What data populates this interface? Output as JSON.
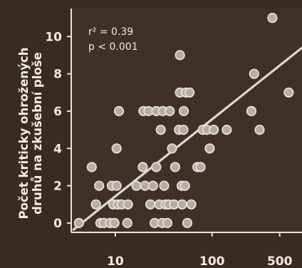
{
  "chart_data": {
    "type": "scatter",
    "title": "",
    "xlabel": "",
    "ylabel_lines": [
      "Počet kriticky ohrožených",
      "druhů na zkušební ploše"
    ],
    "x_scale": "log",
    "xlim": [
      3.5,
      850
    ],
    "ylim": [
      -0.5,
      11.5
    ],
    "x_ticks": [
      10,
      100,
      500
    ],
    "x_tick_labels": [
      "10",
      "100",
      "500"
    ],
    "y_ticks": [
      0,
      2,
      4,
      6,
      8,
      10
    ],
    "y_tick_labels": [
      "0",
      "2",
      "4",
      "6",
      "8",
      "10"
    ],
    "annotations": [
      "r² = 0.39",
      "p < 0.001"
    ],
    "grid": false,
    "legend": "none",
    "colors": {
      "background": "#3a2b22",
      "plot_area": "#3f3128",
      "axes": "#e8e2dc",
      "point_fill": "#b5aca6",
      "point_edge": "#e6e0da",
      "trend_line": "#ddd8d2",
      "text": "#f0ebe6"
    },
    "trend_line": {
      "x": [
        3.7,
        850
      ],
      "y": [
        -0.35,
        9.4
      ]
    },
    "points": [
      {
        "x": 4.2,
        "y": 0
      },
      {
        "x": 5.7,
        "y": 3
      },
      {
        "x": 6.3,
        "y": 1
      },
      {
        "x": 6.8,
        "y": 2
      },
      {
        "x": 7.0,
        "y": 0
      },
      {
        "x": 7.6,
        "y": 0
      },
      {
        "x": 8.8,
        "y": 0
      },
      {
        "x": 9.2,
        "y": 2
      },
      {
        "x": 9.5,
        "y": 1
      },
      {
        "x": 9.8,
        "y": 0
      },
      {
        "x": 10.3,
        "y": 2
      },
      {
        "x": 10.6,
        "y": 1
      },
      {
        "x": 10.3,
        "y": 4
      },
      {
        "x": 10.9,
        "y": 6
      },
      {
        "x": 11.6,
        "y": 1
      },
      {
        "x": 13.5,
        "y": 1
      },
      {
        "x": 13.3,
        "y": 0
      },
      {
        "x": 16.5,
        "y": 2
      },
      {
        "x": 19.5,
        "y": 6
      },
      {
        "x": 19.2,
        "y": 3
      },
      {
        "x": 20.3,
        "y": 2
      },
      {
        "x": 22.0,
        "y": 6
      },
      {
        "x": 23.0,
        "y": 1
      },
      {
        "x": 24.5,
        "y": 2
      },
      {
        "x": 25.5,
        "y": 0
      },
      {
        "x": 26.5,
        "y": 3
      },
      {
        "x": 26.5,
        "y": 6
      },
      {
        "x": 28.5,
        "y": 1
      },
      {
        "x": 29.5,
        "y": 5
      },
      {
        "x": 30.5,
        "y": 0
      },
      {
        "x": 31.0,
        "y": 6
      },
      {
        "x": 32.0,
        "y": 2
      },
      {
        "x": 33.0,
        "y": 1
      },
      {
        "x": 34.5,
        "y": 0
      },
      {
        "x": 35.5,
        "y": 1
      },
      {
        "x": 36.5,
        "y": 6
      },
      {
        "x": 38.5,
        "y": 4
      },
      {
        "x": 40.5,
        "y": 1
      },
      {
        "x": 41.5,
        "y": 3
      },
      {
        "x": 45.5,
        "y": 5
      },
      {
        "x": 46.5,
        "y": 7
      },
      {
        "x": 46.5,
        "y": 9
      },
      {
        "x": 48.5,
        "y": 2
      },
      {
        "x": 49.0,
        "y": 1
      },
      {
        "x": 50.5,
        "y": 5
      },
      {
        "x": 51.0,
        "y": 6
      },
      {
        "x": 52.5,
        "y": 2
      },
      {
        "x": 53.5,
        "y": 7
      },
      {
        "x": 55.5,
        "y": 0
      },
      {
        "x": 58.5,
        "y": 7
      },
      {
        "x": 61.0,
        "y": 1
      },
      {
        "x": 70.5,
        "y": 3
      },
      {
        "x": 76.0,
        "y": 3
      },
      {
        "x": 80.0,
        "y": 5
      },
      {
        "x": 88.5,
        "y": 5
      },
      {
        "x": 94.5,
        "y": 4
      },
      {
        "x": 104.0,
        "y": 5
      },
      {
        "x": 142.0,
        "y": 5
      },
      {
        "x": 255.0,
        "y": 6
      },
      {
        "x": 272.0,
        "y": 8
      },
      {
        "x": 310.0,
        "y": 5
      },
      {
        "x": 420.0,
        "y": 11
      },
      {
        "x": 620.0,
        "y": 7
      }
    ]
  }
}
